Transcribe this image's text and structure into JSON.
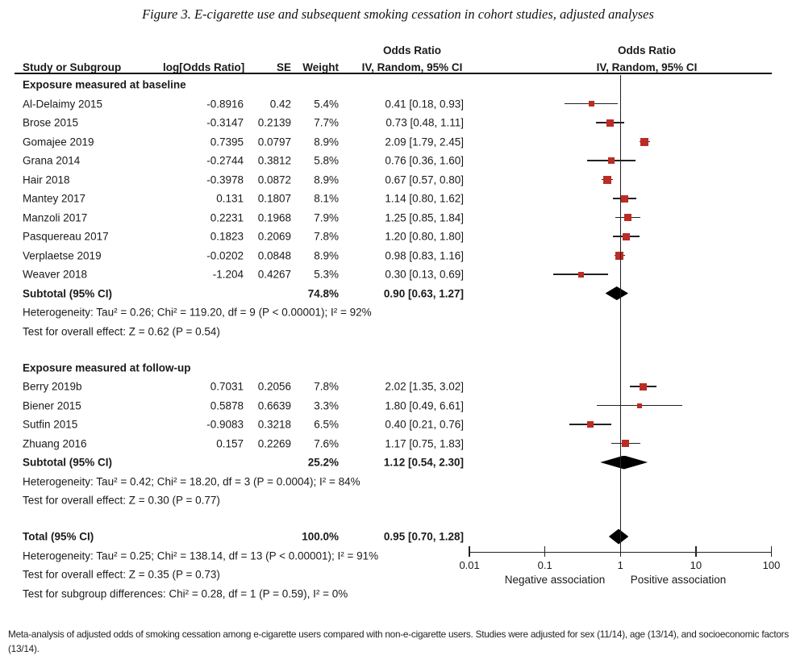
{
  "figure_title": "Figure 3. E-cigarette use and subsequent smoking cessation in cohort studies, adjusted analyses",
  "table_headers": {
    "study": "Study or Subgroup",
    "log_or": "log[Odds Ratio]",
    "se": "SE",
    "weight": "Weight",
    "or_line1": "Odds Ratio",
    "or_line2": "IV, Random, 95% CI",
    "plot_line1": "Odds Ratio",
    "plot_line2": "IV, Random, 95% CI"
  },
  "colors": {
    "effect_square": "#bb2c25",
    "ci_line": "#222222",
    "diamond": "#000000",
    "text": "#1a1a1a"
  },
  "chart_data": {
    "type": "forest",
    "x_scale": "log10",
    "x_ticks": [
      0.01,
      0.1,
      1,
      10,
      100
    ],
    "x_tick_labels": [
      "0.01",
      "0.1",
      "1",
      "10",
      "100"
    ],
    "null_line_value": 1,
    "axis_left_label": "Negative association",
    "axis_right_label": "Positive association",
    "rows": [
      {
        "type": "group",
        "study": "Exposure measured at baseline"
      },
      {
        "type": "study",
        "study": "Al-Delaimy 2015",
        "log_or": "-0.8916",
        "se": "0.42",
        "weight": "5.4%",
        "ci_label": "0.41 [0.18, 0.93]",
        "or": 0.41,
        "ci_low": 0.18,
        "ci_high": 0.93,
        "weight_pct": 5.4
      },
      {
        "type": "study",
        "study": "Brose 2015",
        "log_or": "-0.3147",
        "se": "0.2139",
        "weight": "7.7%",
        "ci_label": "0.73 [0.48, 1.11]",
        "or": 0.73,
        "ci_low": 0.48,
        "ci_high": 1.11,
        "weight_pct": 7.7
      },
      {
        "type": "study",
        "study": "Gomajee 2019",
        "log_or": "0.7395",
        "se": "0.0797",
        "weight": "8.9%",
        "ci_label": "2.09 [1.79, 2.45]",
        "or": 2.09,
        "ci_low": 1.79,
        "ci_high": 2.45,
        "weight_pct": 8.9
      },
      {
        "type": "study",
        "study": "Grana 2014",
        "log_or": "-0.2744",
        "se": "0.3812",
        "weight": "5.8%",
        "ci_label": "0.76 [0.36, 1.60]",
        "or": 0.76,
        "ci_low": 0.36,
        "ci_high": 1.6,
        "weight_pct": 5.8
      },
      {
        "type": "study",
        "study": "Hair 2018",
        "log_or": "-0.3978",
        "se": "0.0872",
        "weight": "8.9%",
        "ci_label": "0.67 [0.57, 0.80]",
        "or": 0.67,
        "ci_low": 0.57,
        "ci_high": 0.8,
        "weight_pct": 8.9
      },
      {
        "type": "study",
        "study": "Mantey 2017",
        "log_or": "0.131",
        "se": "0.1807",
        "weight": "8.1%",
        "ci_label": "1.14 [0.80, 1.62]",
        "or": 1.14,
        "ci_low": 0.8,
        "ci_high": 1.62,
        "weight_pct": 8.1
      },
      {
        "type": "study",
        "study": "Manzoli 2017",
        "log_or": "0.2231",
        "se": "0.1968",
        "weight": "7.9%",
        "ci_label": "1.25 [0.85, 1.84]",
        "or": 1.25,
        "ci_low": 0.85,
        "ci_high": 1.84,
        "weight_pct": 7.9
      },
      {
        "type": "study",
        "study": "Pasquereau 2017",
        "log_or": "0.1823",
        "se": "0.2069",
        "weight": "7.8%",
        "ci_label": "1.20 [0.80, 1.80]",
        "or": 1.2,
        "ci_low": 0.8,
        "ci_high": 1.8,
        "weight_pct": 7.8
      },
      {
        "type": "study",
        "study": "Verplaetse 2019",
        "log_or": "-0.0202",
        "se": "0.0848",
        "weight": "8.9%",
        "ci_label": "0.98 [0.83, 1.16]",
        "or": 0.98,
        "ci_low": 0.83,
        "ci_high": 1.16,
        "weight_pct": 8.9
      },
      {
        "type": "study",
        "study": "Weaver 2018",
        "log_or": "-1.204",
        "se": "0.4267",
        "weight": "5.3%",
        "ci_label": "0.30 [0.13, 0.69]",
        "or": 0.3,
        "ci_low": 0.13,
        "ci_high": 0.69,
        "weight_pct": 5.3
      },
      {
        "type": "subtotal",
        "study": "Subtotal (95% CI)",
        "weight": "74.8%",
        "ci_label": "0.90 [0.63, 1.27]",
        "or": 0.9,
        "ci_low": 0.63,
        "ci_high": 1.27
      },
      {
        "type": "note",
        "study": "Heterogeneity: Tau² = 0.26; Chi² = 119.20, df = 9 (P < 0.00001); I² = 92%"
      },
      {
        "type": "note",
        "study": "Test for overall effect: Z = 0.62 (P = 0.54)"
      },
      {
        "type": "spacer"
      },
      {
        "type": "group",
        "study": "Exposure measured at follow-up"
      },
      {
        "type": "study",
        "study": "Berry 2019b",
        "log_or": "0.7031",
        "se": "0.2056",
        "weight": "7.8%",
        "ci_label": "2.02 [1.35, 3.02]",
        "or": 2.02,
        "ci_low": 1.35,
        "ci_high": 3.02,
        "weight_pct": 7.8
      },
      {
        "type": "study",
        "study": "Biener 2015",
        "log_or": "0.5878",
        "se": "0.6639",
        "weight": "3.3%",
        "ci_label": "1.80 [0.49, 6.61]",
        "or": 1.8,
        "ci_low": 0.49,
        "ci_high": 6.61,
        "weight_pct": 3.3
      },
      {
        "type": "study",
        "study": "Sutfin 2015",
        "log_or": "-0.9083",
        "se": "0.3218",
        "weight": "6.5%",
        "ci_label": "0.40 [0.21, 0.76]",
        "or": 0.4,
        "ci_low": 0.21,
        "ci_high": 0.76,
        "weight_pct": 6.5
      },
      {
        "type": "study",
        "study": "Zhuang 2016",
        "log_or": "0.157",
        "se": "0.2269",
        "weight": "7.6%",
        "ci_label": "1.17 [0.75, 1.83]",
        "or": 1.17,
        "ci_low": 0.75,
        "ci_high": 1.83,
        "weight_pct": 7.6
      },
      {
        "type": "subtotal",
        "study": "Subtotal (95% CI)",
        "weight": "25.2%",
        "ci_label": "1.12 [0.54, 2.30]",
        "or": 1.12,
        "ci_low": 0.54,
        "ci_high": 2.3
      },
      {
        "type": "note",
        "study": "Heterogeneity: Tau² = 0.42; Chi² = 18.20, df = 3 (P = 0.0004); I² = 84%"
      },
      {
        "type": "note",
        "study": "Test for overall effect: Z = 0.30 (P = 0.77)"
      },
      {
        "type": "spacer"
      },
      {
        "type": "total",
        "study": "Total (95% CI)",
        "weight": "100.0%",
        "ci_label": "0.95 [0.70, 1.28]",
        "or": 0.95,
        "ci_low": 0.7,
        "ci_high": 1.28
      },
      {
        "type": "note",
        "study": "Heterogeneity: Tau² = 0.25; Chi² = 138.14, df = 13 (P < 0.00001); I² = 91%"
      },
      {
        "type": "note",
        "study": "Test for overall effect: Z = 0.35 (P = 0.73)"
      },
      {
        "type": "note",
        "study": "Test for subgroup differences: Chi² = 0.28, df = 1 (P = 0.59), I² = 0%"
      }
    ]
  },
  "footnote": "Meta-analysis of adjusted odds of smoking cessation among e-cigarette users compared with non-e-cigarette users. Studies were adjusted for sex (11/14), age (13/14), and socioeconomic factors (13/14)."
}
